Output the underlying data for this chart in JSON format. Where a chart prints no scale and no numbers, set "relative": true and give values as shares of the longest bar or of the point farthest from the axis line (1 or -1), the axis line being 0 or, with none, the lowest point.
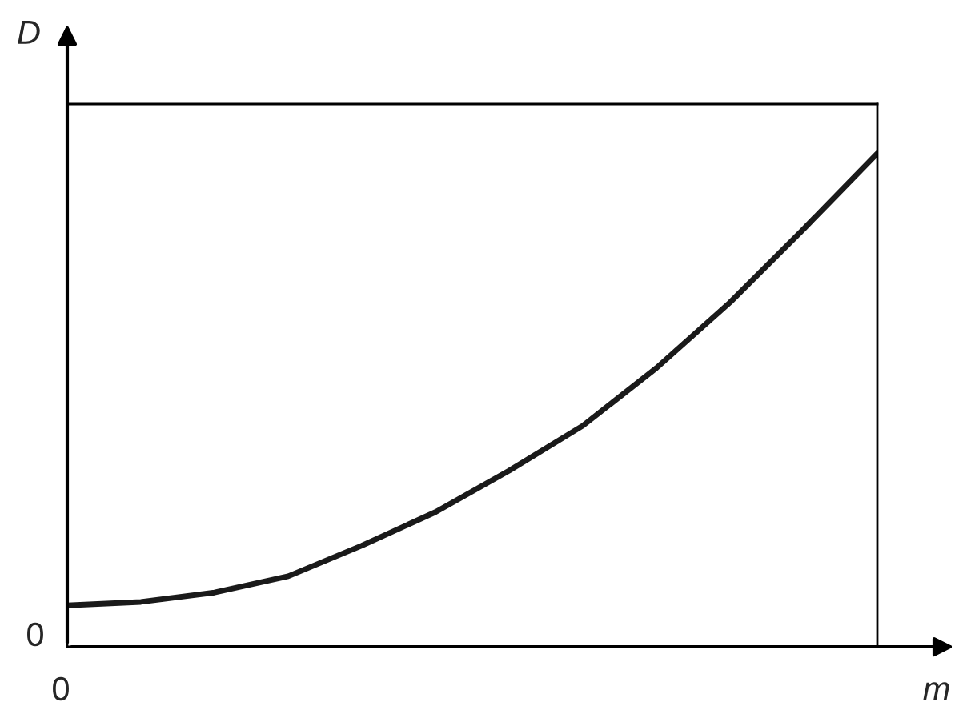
{
  "chart_data": {
    "type": "line",
    "relative": true,
    "xlabel": "m",
    "ylabel": "D",
    "categories": [
      null,
      null,
      null,
      null,
      null,
      null,
      null,
      null,
      null,
      null,
      null,
      null
    ],
    "series": [
      {
        "color": "#1a1a1a",
        "values": [
          0.084,
          0.091,
          0.11,
          0.143,
          0.205,
          0.273,
          0.357,
          0.448,
          0.565,
          0.698,
          0.847,
          1.0
        ]
      }
    ],
    "annotations": [
      "0",
      "0"
    ],
    "grid": false,
    "legend": false,
    "marker": "none",
    "line_style": "solid"
  }
}
